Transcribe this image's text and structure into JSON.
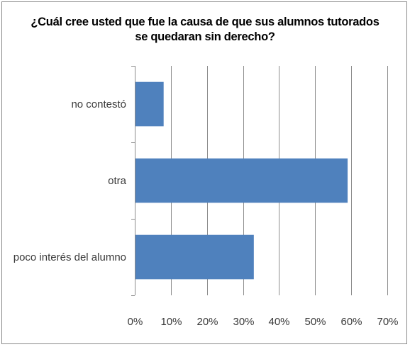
{
  "chart_data": {
    "type": "bar",
    "orientation": "horizontal",
    "title_lines": [
      "¿Cuál cree usted que fue la causa de que sus alumnos tutorados",
      "se quedaran sin derecho?"
    ],
    "categories": [
      "no contestó",
      "otra",
      "poco interés del alumno"
    ],
    "values": [
      8,
      59,
      33
    ],
    "value_unit": "%",
    "xlim": [
      0,
      70
    ],
    "xticks": [
      "0%",
      "10%",
      "20%",
      "30%",
      "40%",
      "50%",
      "60%",
      "70%"
    ],
    "grid": true,
    "legend": false,
    "bar_color": "#4f81bd"
  }
}
